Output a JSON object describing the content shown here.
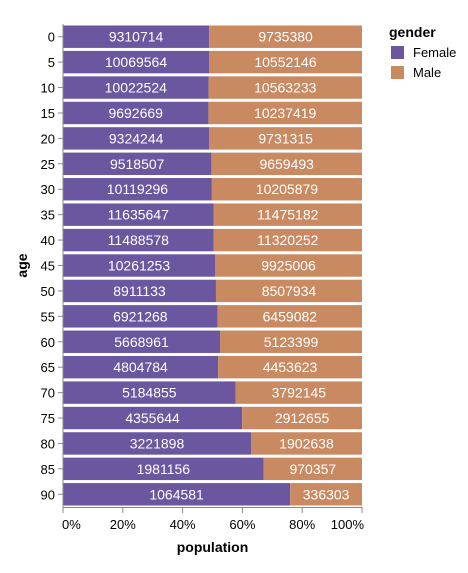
{
  "chart_data": {
    "type": "bar",
    "orientation": "horizontal",
    "stacked": "normalized",
    "xlabel": "population",
    "ylabel": "age",
    "categories": [
      "0",
      "5",
      "10",
      "15",
      "20",
      "25",
      "30",
      "35",
      "40",
      "45",
      "50",
      "55",
      "60",
      "65",
      "70",
      "75",
      "80",
      "85",
      "90"
    ],
    "x_ticks": [
      "0%",
      "20%",
      "40%",
      "60%",
      "80%",
      "100%"
    ],
    "xlim": [
      0,
      1
    ],
    "series": [
      {
        "name": "Female",
        "color": "#6a57a0",
        "values": [
          9310714,
          10069564,
          10022524,
          9692669,
          9324244,
          9518507,
          10119296,
          11635647,
          11488578,
          10261253,
          8911133,
          6921268,
          5668961,
          4804784,
          5184855,
          4355644,
          3221898,
          1981156,
          1064581
        ]
      },
      {
        "name": "Male",
        "color": "#c98a62",
        "values": [
          9735380,
          10552146,
          10563233,
          10237419,
          9731315,
          9659493,
          10205879,
          11475182,
          11320252,
          9925006,
          8507934,
          6459082,
          5123399,
          4453623,
          3792145,
          2912655,
          1902638,
          970357,
          336303
        ]
      }
    ],
    "legend": {
      "title": "gender",
      "position": "top-right"
    },
    "grid": false
  }
}
